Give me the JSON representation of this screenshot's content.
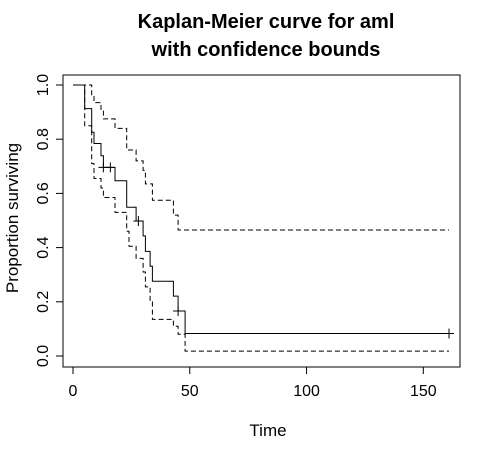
{
  "chart_data": {
    "type": "line",
    "title_lines": [
      "Kaplan-Meier curve for aml",
      "with confidence bounds"
    ],
    "xlabel": "Time",
    "ylabel": "Proportion surviving",
    "xlim": [
      0,
      161
    ],
    "ylim": [
      0,
      1
    ],
    "x_ticks": [
      0,
      50,
      100,
      150
    ],
    "x_tick_labels": [
      "0",
      "50",
      "100",
      "150"
    ],
    "y_ticks": [
      0,
      0.2,
      0.4,
      0.6,
      0.8,
      1.0
    ],
    "y_tick_labels": [
      "0.0",
      "0.2",
      "0.4",
      "0.6",
      "0.8",
      "1.0"
    ],
    "grid": false,
    "series": [
      {
        "role": "estimate",
        "line_style": "solid",
        "color": "#000000",
        "steps": [
          [
            0,
            1.0
          ],
          [
            5,
            0.913
          ],
          [
            8,
            0.826
          ],
          [
            9,
            0.784
          ],
          [
            12,
            0.739
          ],
          [
            13,
            0.696
          ],
          [
            18,
            0.647
          ],
          [
            23,
            0.549
          ],
          [
            27,
            0.498
          ],
          [
            30,
            0.443
          ],
          [
            31,
            0.386
          ],
          [
            33,
            0.331
          ],
          [
            34,
            0.276
          ],
          [
            43,
            0.221
          ],
          [
            45,
            0.166
          ],
          [
            48,
            0.083
          ],
          [
            161,
            0.083
          ]
        ],
        "censored": [
          [
            13,
            0.696
          ],
          [
            16,
            0.696
          ],
          [
            28,
            0.498
          ],
          [
            45,
            0.166
          ],
          [
            161,
            0.083
          ]
        ]
      },
      {
        "role": "upper bound",
        "line_style": "dashed",
        "color": "#000000",
        "steps": [
          [
            0,
            1.0
          ],
          [
            8,
            0.96
          ],
          [
            9,
            0.935
          ],
          [
            12,
            0.91
          ],
          [
            13,
            0.875
          ],
          [
            18,
            0.84
          ],
          [
            23,
            0.76
          ],
          [
            27,
            0.72
          ],
          [
            30,
            0.685
          ],
          [
            31,
            0.635
          ],
          [
            34,
            0.575
          ],
          [
            43,
            0.52
          ],
          [
            45,
            0.465
          ],
          [
            161,
            0.465
          ]
        ]
      },
      {
        "role": "lower bound",
        "line_style": "dashed",
        "color": "#000000",
        "steps": [
          [
            0,
            1.0
          ],
          [
            5,
            0.85
          ],
          [
            8,
            0.71
          ],
          [
            9,
            0.655
          ],
          [
            12,
            0.62
          ],
          [
            13,
            0.585
          ],
          [
            18,
            0.53
          ],
          [
            23,
            0.46
          ],
          [
            24,
            0.405
          ],
          [
            27,
            0.36
          ],
          [
            30,
            0.31
          ],
          [
            31,
            0.255
          ],
          [
            33,
            0.2
          ],
          [
            34,
            0.135
          ],
          [
            43,
            0.11
          ],
          [
            45,
            0.08
          ],
          [
            48,
            0.018
          ],
          [
            161,
            0.018
          ]
        ]
      }
    ]
  }
}
